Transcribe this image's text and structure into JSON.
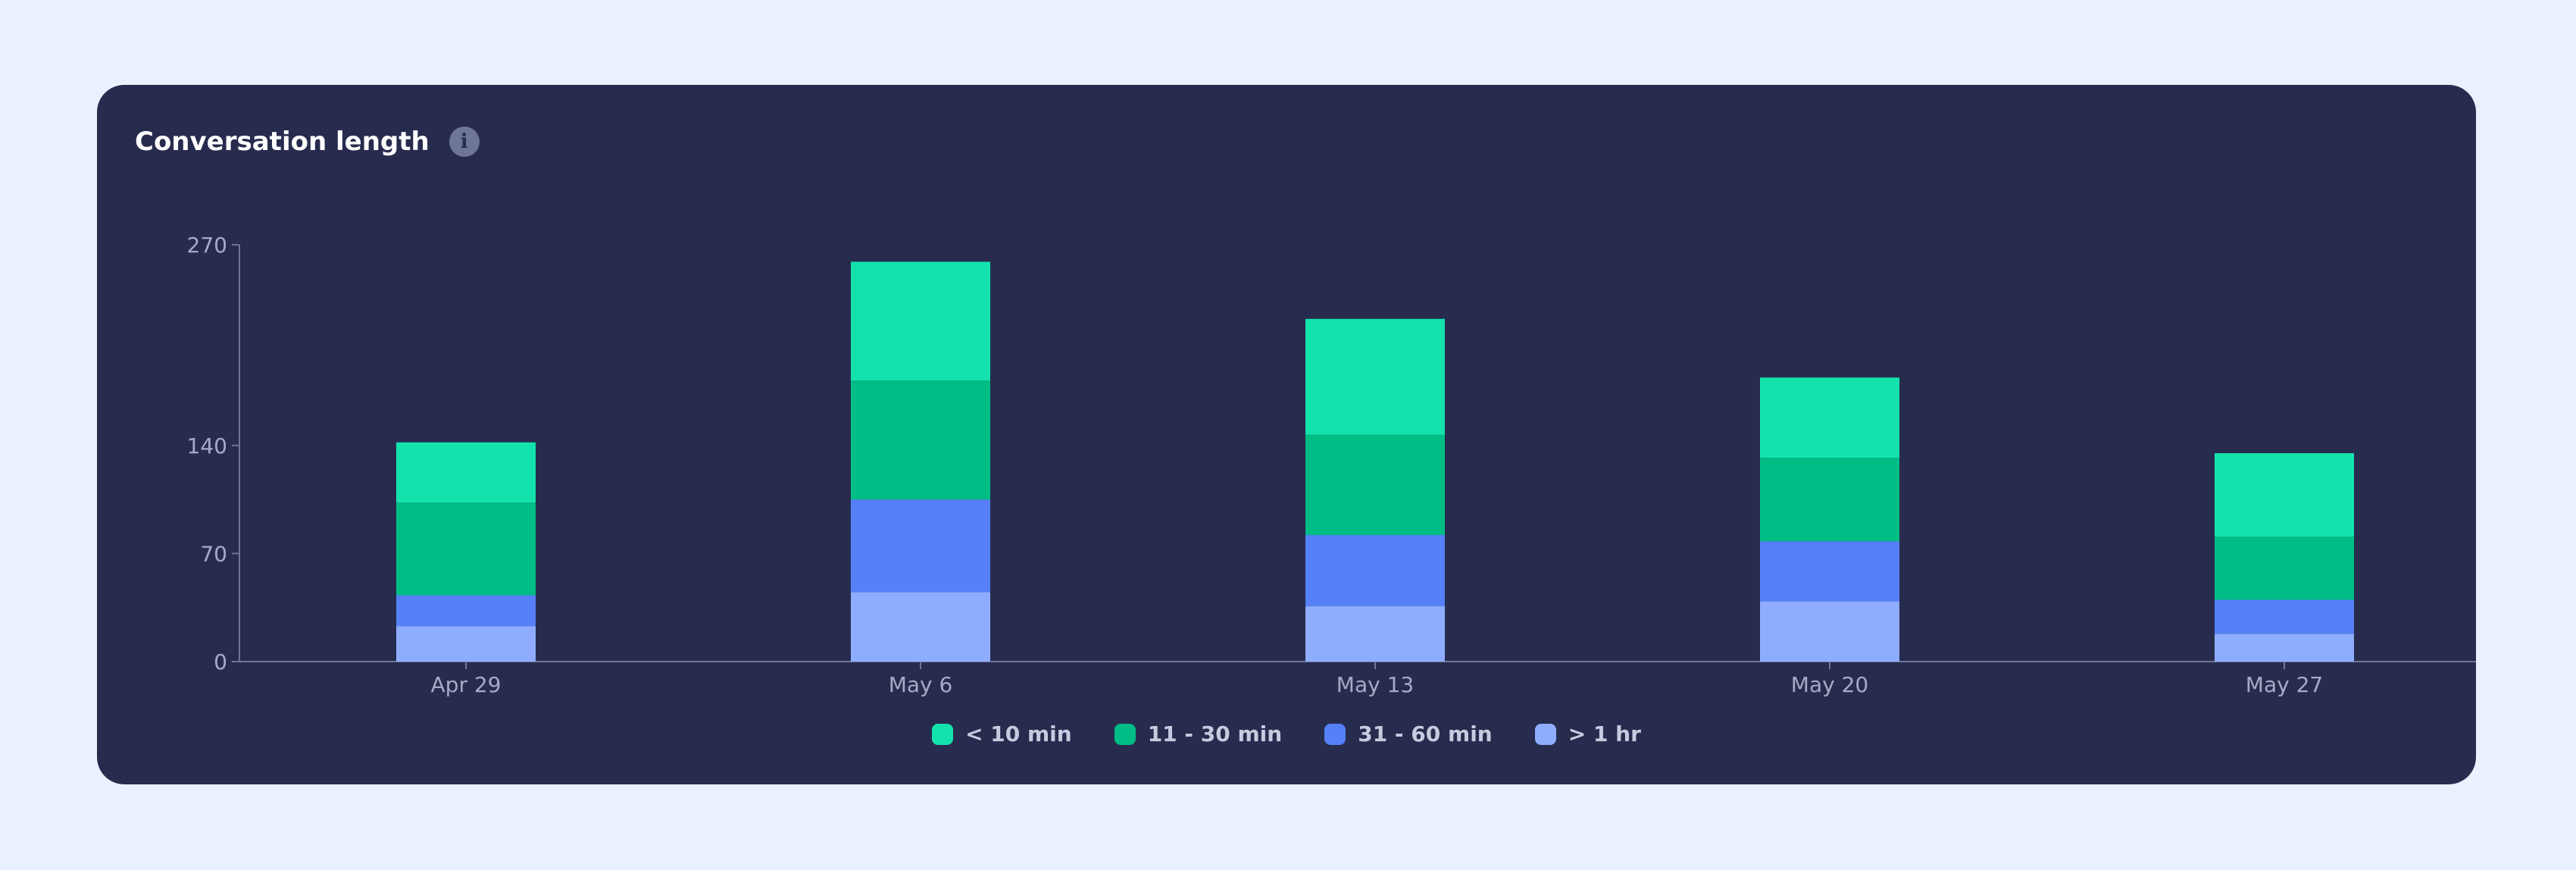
{
  "card": {
    "title": "Conversation length",
    "info_icon": "info-icon"
  },
  "chart_data": {
    "type": "bar",
    "stacked": true,
    "title": "Conversation length",
    "xlabel": "",
    "ylabel": "",
    "categories": [
      "Apr 29",
      "May 6",
      "May 13",
      "May 20",
      "May 27"
    ],
    "yticks": [
      0,
      70,
      140,
      270
    ],
    "ylim": [
      0,
      270
    ],
    "grid": false,
    "legend_position": "bottom",
    "series": [
      {
        "name": "> 1 hr",
        "color": "#8fadff",
        "values": [
          23,
          45,
          36,
          39,
          18
        ]
      },
      {
        "name": "31 - 60 min",
        "color": "#5580f7",
        "values": [
          20,
          60,
          46,
          39,
          22
        ]
      },
      {
        "name": "11 - 30 min",
        "color": "#00bd85",
        "values": [
          60,
          77,
          65,
          54,
          41
        ]
      },
      {
        "name": "< 10 min",
        "color": "#14e2ad",
        "values": [
          39,
          77,
          75,
          52,
          54
        ]
      }
    ],
    "legend_order": [
      "< 10 min",
      "11 - 30 min",
      "31 - 60 min",
      "> 1 hr"
    ]
  }
}
